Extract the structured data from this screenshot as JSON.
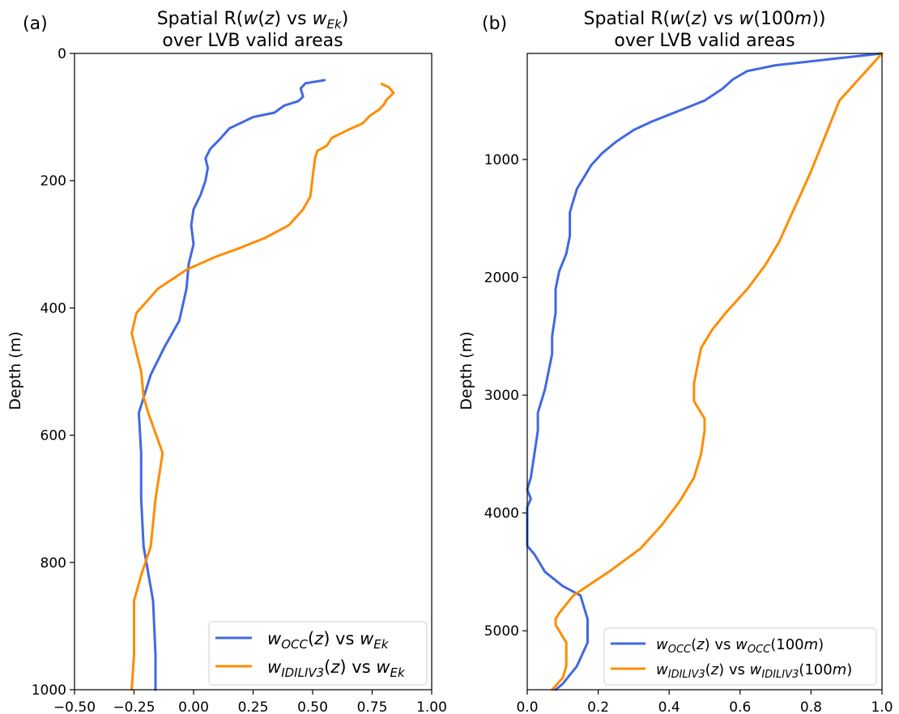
{
  "chart_data": [
    {
      "type": "line",
      "panel_label": "(a)",
      "title_lines": [
        "Spatial R(w(z) vs w_Ek)",
        "over LVB valid areas"
      ],
      "title_text": "Spatial R(w(z) vs wEk) over LVB valid areas",
      "xlabel": "",
      "ylabel": "Depth (m)",
      "xlim": [
        -0.5,
        1.0
      ],
      "ylim": [
        1000,
        0
      ],
      "y_inverted": true,
      "x_ticks": [
        "−0.50",
        "−0.25",
        "0.00",
        "0.25",
        "0.50",
        "0.75",
        "1.00"
      ],
      "y_ticks": [
        "0",
        "200",
        "400",
        "600",
        "800",
        "1000"
      ],
      "grid": false,
      "legend_position": "lower right",
      "series": [
        {
          "name": "w_OCC(z) vs w_Ek",
          "color": "#4169e1",
          "x": [
            0.55,
            0.47,
            0.45,
            0.46,
            0.44,
            0.38,
            0.34,
            0.25,
            0.15,
            0.11,
            0.07,
            0.05,
            0.06,
            0.05,
            0.03,
            0.0,
            -0.01,
            0.0,
            -0.02,
            -0.03,
            -0.06,
            -0.12,
            -0.18,
            -0.23,
            -0.22,
            -0.22,
            -0.21,
            -0.17,
            -0.16,
            -0.16
          ],
          "y": [
            42,
            47,
            55,
            68,
            75,
            82,
            93,
            100,
            118,
            135,
            150,
            165,
            180,
            200,
            222,
            245,
            270,
            300,
            330,
            370,
            420,
            460,
            505,
            565,
            628,
            700,
            775,
            860,
            945,
            1000
          ]
        },
        {
          "name": "w_IDILIV3(z) vs w_Ek",
          "color": "#ff8c00",
          "x": [
            0.79,
            0.82,
            0.84,
            0.81,
            0.8,
            0.78,
            0.74,
            0.71,
            0.65,
            0.58,
            0.56,
            0.52,
            0.51,
            0.5,
            0.49,
            0.46,
            0.4,
            0.3,
            0.2,
            0.09,
            -0.03,
            -0.15,
            -0.24,
            -0.26,
            -0.22,
            -0.21,
            -0.19,
            -0.13,
            -0.16,
            -0.18,
            -0.22,
            -0.25,
            -0.25,
            -0.26
          ],
          "y": [
            48,
            53,
            62,
            73,
            80,
            88,
            98,
            110,
            120,
            133,
            145,
            153,
            165,
            195,
            225,
            245,
            270,
            290,
            305,
            320,
            340,
            370,
            408,
            440,
            500,
            540,
            565,
            628,
            700,
            775,
            820,
            860,
            945,
            1000
          ]
        }
      ]
    },
    {
      "type": "line",
      "panel_label": "(b)",
      "title_lines": [
        "Spatial R(w(z) vs w(100m))",
        "over LVB valid areas"
      ],
      "title_text": "Spatial R(w(z) vs w(100m)) over LVB valid areas",
      "xlabel": "",
      "ylabel": "Depth (m)",
      "xlim": [
        0.0,
        1.0
      ],
      "ylim": [
        5500,
        100
      ],
      "y_inverted": true,
      "x_ticks": [
        "0.0",
        "0.2",
        "0.4",
        "0.6",
        "0.8",
        "1.0"
      ],
      "y_ticks": [
        "1000",
        "2000",
        "3000",
        "4000",
        "5000"
      ],
      "grid": false,
      "legend_position": "lower right",
      "series": [
        {
          "name": "w_OCC(z) vs w_OCC(100m)",
          "color": "#4169e1",
          "x": [
            1.0,
            0.85,
            0.7,
            0.62,
            0.58,
            0.55,
            0.5,
            0.45,
            0.4,
            0.35,
            0.3,
            0.25,
            0.21,
            0.18,
            0.16,
            0.14,
            0.13,
            0.12,
            0.12,
            0.12,
            0.11,
            0.09,
            0.08,
            0.08,
            0.07,
            0.07,
            0.06,
            0.05,
            0.03,
            0.03,
            0.02,
            0.01,
            0.0,
            0.01,
            0.0,
            0.0,
            0.0,
            0.02,
            0.05,
            0.1,
            0.15,
            0.17,
            0.17,
            0.14,
            0.1,
            0.08
          ],
          "y": [
            100,
            150,
            200,
            250,
            320,
            400,
            500,
            560,
            620,
            680,
            750,
            850,
            950,
            1050,
            1150,
            1250,
            1350,
            1450,
            1550,
            1650,
            1800,
            1950,
            2100,
            2300,
            2500,
            2650,
            2800,
            2950,
            3150,
            3300,
            3500,
            3700,
            3800,
            3880,
            3950,
            4100,
            4280,
            4350,
            4500,
            4620,
            4700,
            4900,
            5100,
            5300,
            5450,
            5500
          ],
          "x_fix": true
        },
        {
          "name": "w_IDILIV3(z) vs w_IDILIV3(100m)",
          "color": "#ff8c00",
          "x": [
            1.0,
            0.97,
            0.94,
            0.91,
            0.88,
            0.86,
            0.84,
            0.82,
            0.8,
            0.77,
            0.74,
            0.71,
            0.67,
            0.62,
            0.56,
            0.52,
            0.49,
            0.48,
            0.47,
            0.47,
            0.47,
            0.48,
            0.49,
            0.5,
            0.5,
            0.49,
            0.47,
            0.43,
            0.38,
            0.35,
            0.32,
            0.23,
            0.13,
            0.09,
            0.08,
            0.08,
            0.11,
            0.11,
            0.1,
            0.07
          ],
          "y": [
            100,
            200,
            300,
            400,
            500,
            650,
            800,
            950,
            1100,
            1300,
            1500,
            1700,
            1900,
            2100,
            2300,
            2450,
            2600,
            2750,
            2900,
            3000,
            3050,
            3100,
            3150,
            3200,
            3300,
            3500,
            3700,
            3900,
            4100,
            4200,
            4300,
            4500,
            4700,
            4850,
            4900,
            4950,
            5100,
            5300,
            5400,
            5500
          ]
        }
      ]
    }
  ]
}
